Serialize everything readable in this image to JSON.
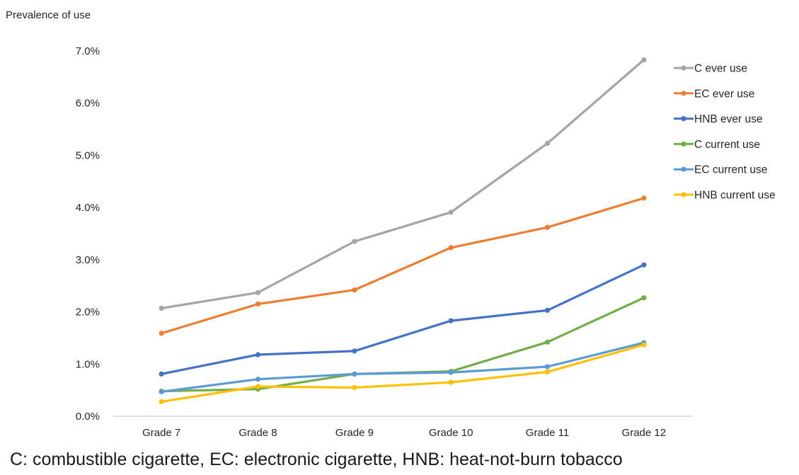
{
  "chart_data": {
    "type": "line",
    "title": "",
    "ylabel": "Prevalence of use",
    "xlabel": "",
    "categories": [
      "Grade 7",
      "Grade 8",
      "Grade 9",
      "Grade 10",
      "Grade 11",
      "Grade 12"
    ],
    "ylim": [
      0,
      7
    ],
    "yticks": [
      0,
      1,
      2,
      3,
      4,
      5,
      6,
      7
    ],
    "ytick_labels": [
      "0.0%",
      "1.0%",
      "2.0%",
      "3.0%",
      "4.0%",
      "5.0%",
      "6.0%",
      "7.0%"
    ],
    "grid": false,
    "legend_position": "right",
    "series": [
      {
        "name": "C ever use",
        "color": "#a5a5a5",
        "values": [
          2.07,
          2.37,
          3.35,
          3.91,
          5.23,
          6.83
        ]
      },
      {
        "name": "EC ever use",
        "color": "#ed7d31",
        "values": [
          1.59,
          2.15,
          2.42,
          3.23,
          3.62,
          4.18
        ]
      },
      {
        "name": "HNB ever use",
        "color": "#4472c4",
        "values": [
          0.81,
          1.18,
          1.25,
          1.83,
          2.03,
          2.9
        ]
      },
      {
        "name": "C current use",
        "color": "#70ad47",
        "values": [
          0.48,
          0.52,
          0.81,
          0.86,
          1.42,
          2.27
        ]
      },
      {
        "name": "EC current use",
        "color": "#5b9bd5",
        "values": [
          0.47,
          0.71,
          0.81,
          0.84,
          0.95,
          1.41
        ]
      },
      {
        "name": "HNB current use",
        "color": "#ffc000",
        "values": [
          0.28,
          0.57,
          0.55,
          0.65,
          0.85,
          1.37
        ]
      }
    ],
    "footnote": "C: combustible cigarette, EC: electronic cigarette, HNB: heat-not-burn tobacco"
  }
}
